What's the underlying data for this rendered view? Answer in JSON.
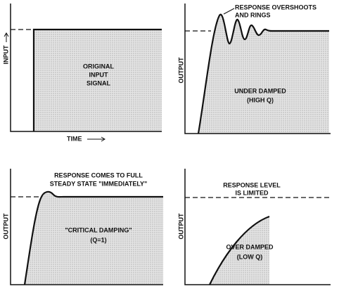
{
  "panels": [
    {
      "axis_label": "INPUT",
      "x_axis_label": "TIME",
      "label": [
        "ORIGINAL",
        "INPUT",
        "SIGNAL"
      ]
    },
    {
      "axis_label": "OUTPUT",
      "annotation": [
        "RESPONSE OVERSHOOTS",
        "AND RINGS"
      ],
      "label": [
        "UNDER DAMPED",
        "(HIGH Q)"
      ]
    },
    {
      "axis_label": "OUTPUT",
      "annotation": [
        "RESPONSE COMES TO FULL",
        "STEADY STATE \"IMMEDIATELY\""
      ],
      "label": [
        "\"CRITICAL DAMPING\"",
        "(Q=1)"
      ]
    },
    {
      "axis_label": "OUTPUT",
      "annotation": [
        "RESPONSE LEVEL",
        "IS LIMITED"
      ],
      "label": [
        "OVER DAMPED",
        "(LOW Q)"
      ]
    }
  ]
}
